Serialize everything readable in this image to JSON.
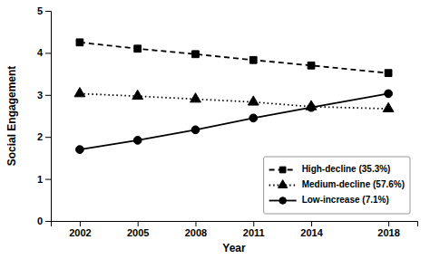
{
  "chart_data": {
    "type": "line",
    "x": [
      2002,
      2005,
      2008,
      2011,
      2014,
      2018
    ],
    "xlabel": "Year",
    "ylabel": "Social Engagement",
    "xlim": [
      2000.5,
      2019.5
    ],
    "xticks": [
      2002,
      2005,
      2008,
      2011,
      2014,
      2018
    ],
    "ylim": [
      0,
      5
    ],
    "yticks": [
      0,
      1,
      2,
      3,
      4,
      5
    ],
    "grid": false,
    "legend": "lower right",
    "series": [
      {
        "name": "High-decline (35.3%)",
        "color": "#000000",
        "line_style": "dashed",
        "marker": "square",
        "values": [
          4.25,
          4.1,
          3.97,
          3.83,
          3.7,
          3.52
        ]
      },
      {
        "name": "Medium-decline (57.6%)",
        "color": "#000000",
        "line_style": "dotted",
        "marker": "triangle",
        "values": [
          3.03,
          2.97,
          2.9,
          2.83,
          2.72,
          2.67
        ]
      },
      {
        "name": "Low-increase (7.1%)",
        "color": "#000000",
        "line_style": "solid",
        "marker": "circle",
        "values": [
          1.7,
          1.92,
          2.17,
          2.45,
          2.7,
          3.03
        ]
      }
    ]
  }
}
